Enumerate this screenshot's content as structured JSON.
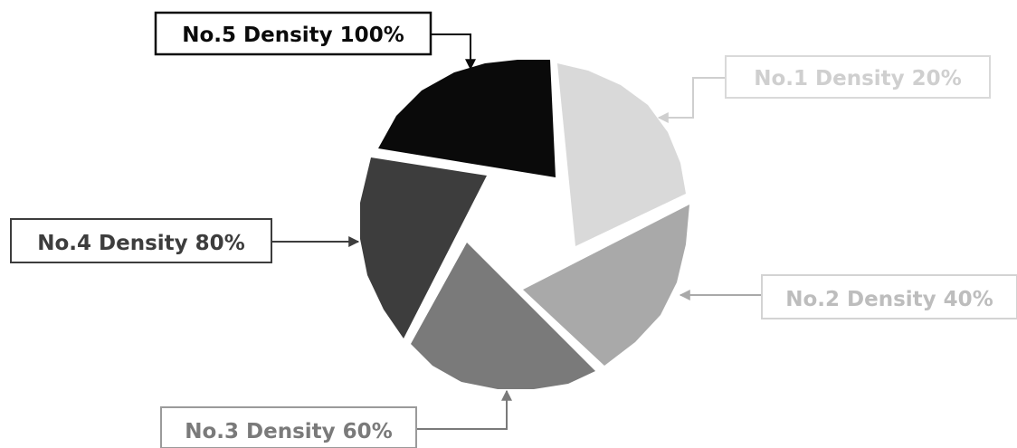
{
  "segments": [
    {
      "id": "no1",
      "label": "No.1 Density 20%",
      "fill": "#d9d9d9",
      "box_stroke": "#d9d9d9",
      "text_color": "#cfcfcf",
      "connector_color": "#cfcfcf"
    },
    {
      "id": "no2",
      "label": "No.2 Density 40%",
      "fill": "#a9a9a9",
      "box_stroke": "#d3d3d3",
      "text_color": "#bdbdbd",
      "connector_color": "#a9a9a9"
    },
    {
      "id": "no3",
      "label": "No.3 Density 60%",
      "fill": "#7a7a7a",
      "box_stroke": "#9a9a9a",
      "text_color": "#7a7a7a",
      "connector_color": "#7a7a7a"
    },
    {
      "id": "no4",
      "label": "No.4 Density 80%",
      "fill": "#3d3d3d",
      "box_stroke": "#3d3d3d",
      "text_color": "#3d3d3d",
      "connector_color": "#3d3d3d"
    },
    {
      "id": "no5",
      "label": "No.5 Density 100%",
      "fill": "#0a0a0a",
      "box_stroke": "#0a0a0a",
      "text_color": "#0a0a0a",
      "connector_color": "#0a0a0a"
    }
  ]
}
